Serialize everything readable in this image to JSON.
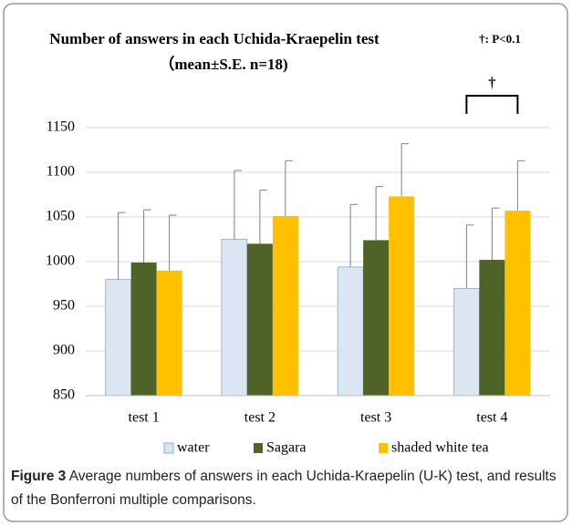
{
  "chart_data": {
    "type": "bar",
    "title": "Number of answers in each Uchida-Kraepelin test",
    "subtitle": "（mean±S.E. n=18)",
    "note": "†: P<0.1",
    "annotations": [
      {
        "text": "†",
        "between": [
          "water",
          "shaded white tea"
        ],
        "category": "test 4"
      }
    ],
    "categories": [
      "test 1",
      "test 2",
      "test 3",
      "test 4"
    ],
    "series": [
      {
        "name": "water",
        "color": "#dce6f2",
        "values": [
          980,
          1025,
          994,
          970
        ],
        "errors": [
          75,
          77,
          70,
          71
        ]
      },
      {
        "name": "Sagara",
        "color": "#4f6228",
        "values": [
          999,
          1020,
          1024,
          1002
        ],
        "errors": [
          59,
          60,
          60,
          58
        ]
      },
      {
        "name": "shaded white tea",
        "color": "#ffc000",
        "values": [
          990,
          1051,
          1073,
          1057
        ],
        "errors": [
          62,
          62,
          59,
          56
        ]
      }
    ],
    "ylim": [
      850,
      1150
    ],
    "yticks": [
      850,
      900,
      950,
      1000,
      1050,
      1100,
      1150
    ],
    "grid": true
  },
  "caption": {
    "label": "Figure 3",
    "text": "Average numbers of answers in each Uchida-Kraepelin (U-K) test, and results of the Bonferroni multiple comparisons."
  }
}
